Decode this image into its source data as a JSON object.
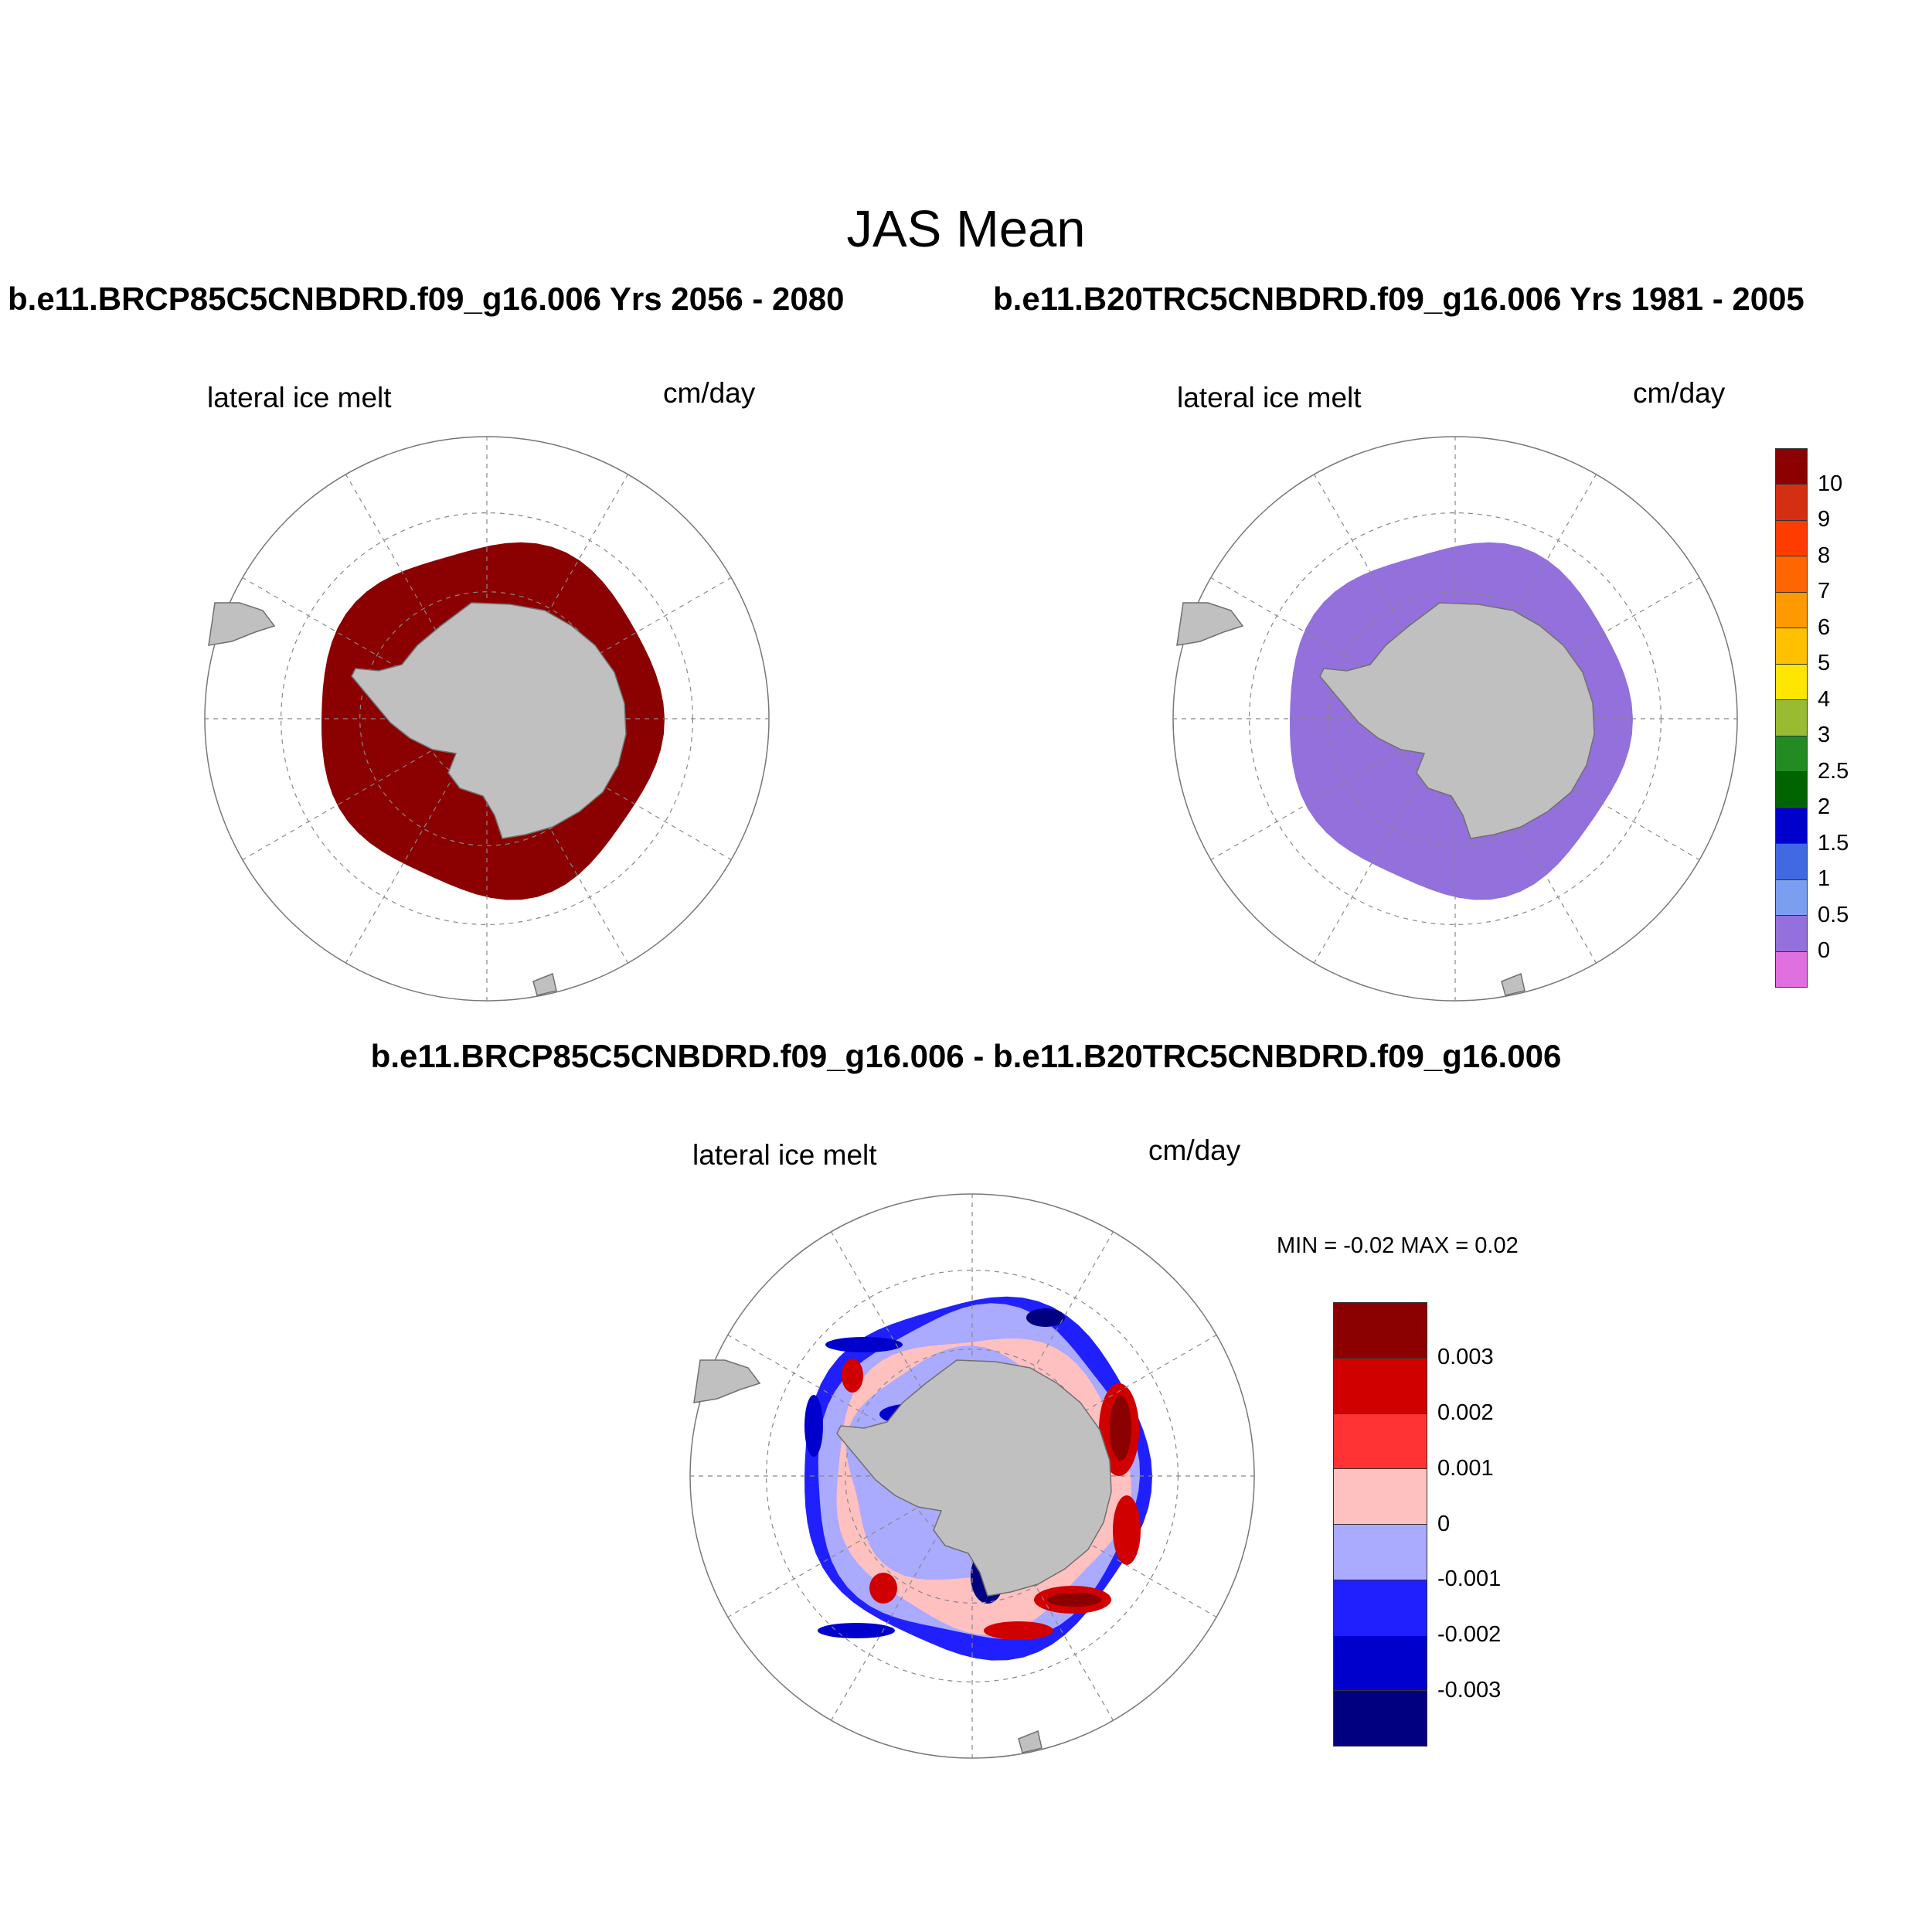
{
  "figure": {
    "title": "JAS Mean",
    "top_left_title": "b.e11.BRCP85C5CNBDRD.f09_g16.006  Yrs 2056 - 2080",
    "top_right_title": "b.e11.B20TRC5CNBDRD.f09_g16.006  Yrs 1981 - 2005",
    "diff_title": "b.e11.BRCP85C5CNBDRD.f09_g16.006 - b.e11.B20TRC5CNBDRD.f09_g16.006"
  },
  "panels": [
    {
      "id": "future",
      "variable": "lateral ice melt",
      "units": "cm/day",
      "fill_color": "#8b0000",
      "fill_level": ">10"
    },
    {
      "id": "historical",
      "variable": "lateral ice melt",
      "units": "cm/day",
      "fill_color": "#9370db",
      "fill_level": "0 - 0.5"
    },
    {
      "id": "difference",
      "variable": "lateral ice melt",
      "units": "cm/day",
      "min_max": "MIN =  -0.02 MAX =   0.02"
    }
  ],
  "colorbar_main": {
    "labels": [
      "10",
      "9",
      "8",
      "7",
      "6",
      "5",
      "4",
      "3",
      "2.5",
      "2",
      "1.5",
      "1",
      "0.5",
      "0"
    ],
    "colors": [
      "#8b0000",
      "#d42f12",
      "#ff3c00",
      "#ff6600",
      "#ff9900",
      "#ffc000",
      "#ffe600",
      "#99bb33",
      "#228b22",
      "#006400",
      "#0000cd",
      "#4169e1",
      "#7b9ef0",
      "#9370db",
      "#e070e0"
    ]
  },
  "colorbar_diff": {
    "labels": [
      "0.003",
      "0.002",
      "0.001",
      "0",
      "-0.001",
      "-0.002",
      "-0.003"
    ],
    "colors": [
      "#8b0000",
      "#d00000",
      "#ff3333",
      "#ffc0c0",
      "#aaaaff",
      "#2020ff",
      "#0000cc",
      "#000080"
    ]
  },
  "map_colors": {
    "land": "#c0c0c0",
    "land_outline": "#707070",
    "grid": "#888888"
  }
}
